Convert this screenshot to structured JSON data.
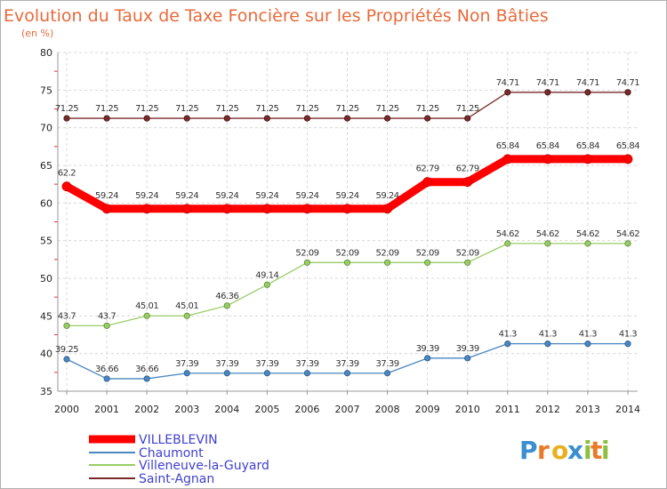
{
  "chart_data": {
    "type": "line",
    "title": "Evolution du Taux de Taxe Foncière sur les Propriétés Non Bâties",
    "subtitle": "(en %)",
    "x": [
      "2000",
      "2001",
      "2002",
      "2003",
      "2004",
      "2005",
      "2006",
      "2007",
      "2008",
      "2009",
      "2010",
      "2011",
      "2012",
      "2013",
      "2014"
    ],
    "ylim": [
      35,
      80
    ],
    "yticks": [
      35,
      40,
      45,
      50,
      55,
      60,
      65,
      70,
      75,
      80
    ],
    "grid": true,
    "legend_position": "bottom-left",
    "series": [
      {
        "name": "VILLEBLEVIN",
        "color": "#ff0000",
        "values": [
          62.2,
          59.24,
          59.24,
          59.24,
          59.24,
          59.24,
          59.24,
          59.24,
          59.24,
          62.79,
          62.79,
          65.84,
          65.84,
          65.84,
          65.84
        ],
        "labels": [
          "62.2",
          "59.24",
          "59.24",
          "59.24",
          "59.24",
          "59.24",
          "59.24",
          "59.24",
          "59.24",
          "62.79",
          "62.79",
          "65.84",
          "65.84",
          "65.84",
          "65.84"
        ]
      },
      {
        "name": "Chaumont",
        "color": "#4a86c0",
        "values": [
          39.25,
          36.66,
          36.66,
          37.39,
          37.39,
          37.39,
          37.39,
          37.39,
          37.39,
          39.39,
          39.39,
          41.3,
          41.3,
          41.3,
          41.3
        ],
        "labels": [
          "39.25",
          "36.66",
          "36.66",
          "37.39",
          "37.39",
          "37.39",
          "37.39",
          "37.39",
          "37.39",
          "39.39",
          "39.39",
          "41.3",
          "41.3",
          "41.3",
          "41.3"
        ]
      },
      {
        "name": "Villeneuve-la-Guyard",
        "color": "#99cc66",
        "values": [
          43.7,
          43.7,
          45.01,
          45.01,
          46.36,
          49.14,
          52.09,
          52.09,
          52.09,
          52.09,
          52.09,
          54.62,
          54.62,
          54.62,
          54.62
        ],
        "labels": [
          "43.7",
          "43.7",
          "45.01",
          "45.01",
          "46.36",
          "49.14",
          "52.09",
          "52.09",
          "52.09",
          "52.09",
          "52.09",
          "54.62",
          "54.62",
          "54.62",
          "54.62"
        ]
      },
      {
        "name": "Saint-Agnan",
        "color": "#7a2a2a",
        "values": [
          71.25,
          71.25,
          71.25,
          71.25,
          71.25,
          71.25,
          71.25,
          71.25,
          71.25,
          71.25,
          71.25,
          74.71,
          74.71,
          74.71,
          74.71
        ],
        "labels": [
          "71.25",
          "71.25",
          "71.25",
          "71.25",
          "71.25",
          "71.25",
          "71.25",
          "71.25",
          "71.25",
          "71.25",
          "71.25",
          "74.71",
          "74.71",
          "74.71",
          "74.71"
        ]
      }
    ]
  },
  "logo": {
    "letters": [
      "P",
      "r",
      "o",
      "x",
      "i",
      "t",
      "i"
    ],
    "colors": [
      "#3a8fd0",
      "#e87a2a",
      "#e8b020",
      "#3a8fd0",
      "#8cc040",
      "#e87a2a",
      "#8cc040"
    ]
  }
}
